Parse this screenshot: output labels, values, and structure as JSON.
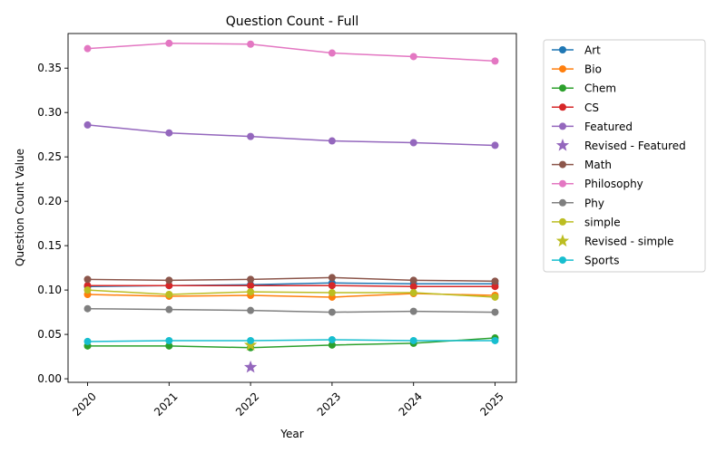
{
  "chart_data": {
    "type": "line",
    "title": "Question Count - Full",
    "xlabel": "Year",
    "ylabel": "Question Count Value",
    "x": [
      2020,
      2021,
      2022,
      2023,
      2024,
      2025
    ],
    "x_tick_labels": [
      "2020",
      "2021",
      "2022",
      "2023",
      "2024",
      "2025"
    ],
    "ylim": [
      -0.004,
      0.389
    ],
    "y_ticks": [
      0.0,
      0.05,
      0.1,
      0.15,
      0.2,
      0.25,
      0.3,
      0.35
    ],
    "y_tick_labels": [
      "0.00",
      "0.05",
      "0.10",
      "0.15",
      "0.20",
      "0.25",
      "0.30",
      "0.35"
    ],
    "grid": false,
    "legend_position": "outside-right",
    "series": [
      {
        "name": "Art",
        "kind": "line",
        "color": "#1f77b4",
        "values": [
          0.104,
          0.105,
          0.106,
          0.108,
          0.107,
          0.107
        ]
      },
      {
        "name": "Bio",
        "kind": "line",
        "color": "#ff7f0e",
        "values": [
          0.095,
          0.093,
          0.094,
          0.092,
          0.096,
          0.094
        ]
      },
      {
        "name": "Chem",
        "kind": "line",
        "color": "#2ca02c",
        "values": [
          0.037,
          0.037,
          0.035,
          0.038,
          0.04,
          0.046
        ]
      },
      {
        "name": "CS",
        "kind": "line",
        "color": "#d62728",
        "values": [
          0.105,
          0.105,
          0.105,
          0.105,
          0.104,
          0.104
        ]
      },
      {
        "name": "Featured",
        "kind": "line",
        "color": "#9467bd",
        "values": [
          0.286,
          0.277,
          0.273,
          0.268,
          0.266,
          0.263
        ]
      },
      {
        "name": "Revised - Featured",
        "kind": "star",
        "color": "#9467bd",
        "points": [
          {
            "x": 2022,
            "y": 0.013
          }
        ]
      },
      {
        "name": "Math",
        "kind": "line",
        "color": "#8c564b",
        "values": [
          0.112,
          0.111,
          0.112,
          0.114,
          0.111,
          0.11
        ]
      },
      {
        "name": "Philosophy",
        "kind": "line",
        "color": "#e377c2",
        "values": [
          0.372,
          0.378,
          0.377,
          0.367,
          0.363,
          0.358
        ]
      },
      {
        "name": "Phy",
        "kind": "line",
        "color": "#7f7f7f",
        "values": [
          0.079,
          0.078,
          0.077,
          0.075,
          0.076,
          0.075
        ]
      },
      {
        "name": "simple",
        "kind": "line",
        "color": "#bcbd22",
        "values": [
          0.1,
          0.095,
          0.098,
          0.097,
          0.097,
          0.092
        ]
      },
      {
        "name": "Revised - simple",
        "kind": "star",
        "color": "#bcbd22",
        "points": [
          {
            "x": 2022,
            "y": 0.038
          }
        ]
      },
      {
        "name": "Sports",
        "kind": "line",
        "color": "#17becf",
        "values": [
          0.042,
          0.043,
          0.043,
          0.044,
          0.043,
          0.043
        ]
      }
    ]
  }
}
